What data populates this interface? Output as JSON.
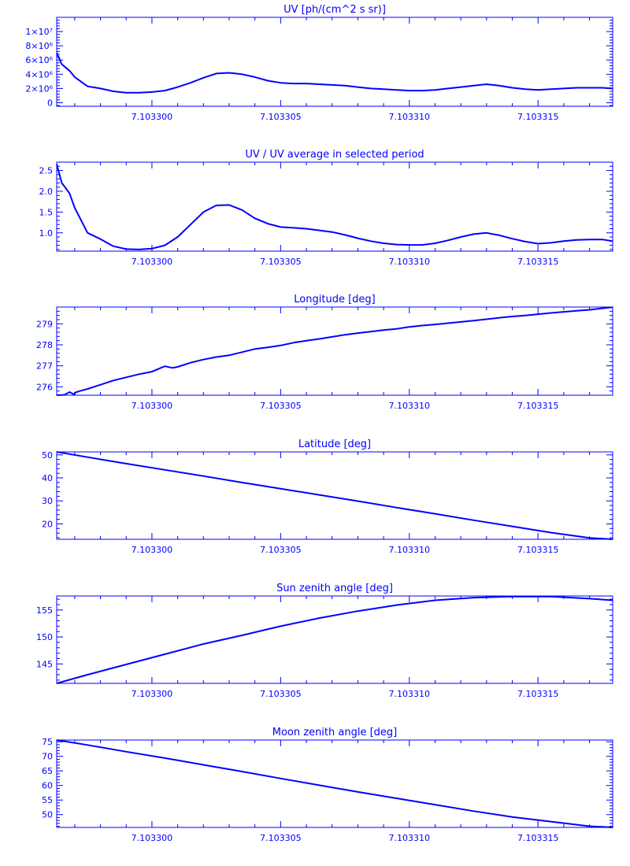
{
  "chart_data": [
    {
      "type": "line",
      "title": "UV [ph/(cm^2 s sr)]",
      "xlabel": "",
      "ylabel": "",
      "xlim": [
        7.1032963,
        7.1033179
      ],
      "ylim": [
        -500000,
        12000000
      ],
      "xticks": [
        7.1033,
        7.103305,
        7.10331,
        7.103315
      ],
      "xtick_labels": [
        "7.103300",
        "7.103305",
        "7.103310",
        "7.103315"
      ],
      "yticks": [
        0,
        2000000,
        4000000,
        6000000,
        8000000,
        10000000
      ],
      "ytick_labels": [
        "0",
        "2×10⁶",
        "4×10⁶",
        "6×10⁶",
        "8×10⁶",
        "1×10⁷"
      ],
      "x": [
        7.1032963,
        7.1032965,
        7.1032968,
        7.103297,
        7.1032975,
        7.103298,
        7.1032985,
        7.103299,
        7.1032995,
        7.1033,
        7.1033005,
        7.103301,
        7.1033015,
        7.103302,
        7.1033025,
        7.103303,
        7.1033035,
        7.103304,
        7.1033045,
        7.103305,
        7.1033055,
        7.103306,
        7.1033065,
        7.103307,
        7.1033075,
        7.103308,
        7.1033085,
        7.103309,
        7.1033095,
        7.10331,
        7.1033105,
        7.103311,
        7.1033115,
        7.103312,
        7.1033125,
        7.103313,
        7.1033135,
        7.103314,
        7.1033145,
        7.103315,
        7.1033155,
        7.103316,
        7.1033165,
        7.103317,
        7.1033175,
        7.1033179
      ],
      "y": [
        7000000,
        5400000,
        4500000,
        3600000,
        2300000,
        2000000,
        1600000,
        1400000,
        1400000,
        1500000,
        1700000,
        2200000,
        2800000,
        3500000,
        4100000,
        4200000,
        4000000,
        3600000,
        3100000,
        2800000,
        2700000,
        2700000,
        2600000,
        2500000,
        2400000,
        2200000,
        2000000,
        1900000,
        1800000,
        1700000,
        1700000,
        1800000,
        2000000,
        2200000,
        2400000,
        2600000,
        2400000,
        2100000,
        1900000,
        1800000,
        1900000,
        2000000,
        2100000,
        2100000,
        2100000,
        2000000
      ],
      "grid": false
    },
    {
      "type": "line",
      "title": "UV / UV average in selected period",
      "xlabel": "",
      "ylabel": "",
      "xlim": [
        7.1032963,
        7.1033179
      ],
      "ylim": [
        0.56,
        2.7
      ],
      "xticks": [
        7.1033,
        7.103305,
        7.10331,
        7.103315
      ],
      "xtick_labels": [
        "7.103300",
        "7.103305",
        "7.103310",
        "7.103315"
      ],
      "yticks": [
        1.0,
        1.5,
        2.0,
        2.5
      ],
      "ytick_labels": [
        "1.0",
        "1.5",
        "2.0",
        "2.5"
      ],
      "x": [
        7.1032963,
        7.1032965,
        7.1032968,
        7.103297,
        7.1032975,
        7.103298,
        7.1032985,
        7.103299,
        7.1032995,
        7.1033,
        7.1033005,
        7.103301,
        7.1033015,
        7.103302,
        7.1033025,
        7.103303,
        7.1033035,
        7.103304,
        7.1033045,
        7.103305,
        7.1033055,
        7.103306,
        7.1033065,
        7.103307,
        7.1033075,
        7.103308,
        7.1033085,
        7.103309,
        7.1033095,
        7.10331,
        7.1033105,
        7.103311,
        7.1033115,
        7.103312,
        7.1033125,
        7.103313,
        7.1033135,
        7.103314,
        7.1033145,
        7.103315,
        7.1033155,
        7.103316,
        7.1033165,
        7.103317,
        7.1033175,
        7.1033179
      ],
      "y": [
        2.65,
        2.2,
        1.95,
        1.6,
        1.0,
        0.85,
        0.68,
        0.61,
        0.6,
        0.62,
        0.7,
        0.9,
        1.2,
        1.5,
        1.66,
        1.67,
        1.55,
        1.35,
        1.22,
        1.14,
        1.12,
        1.1,
        1.06,
        1.02,
        0.95,
        0.87,
        0.8,
        0.75,
        0.72,
        0.71,
        0.71,
        0.75,
        0.82,
        0.9,
        0.97,
        1.0,
        0.94,
        0.86,
        0.79,
        0.74,
        0.76,
        0.8,
        0.83,
        0.84,
        0.84,
        0.8
      ],
      "grid": false
    },
    {
      "type": "line",
      "title": "Longitude [deg]",
      "xlabel": "",
      "ylabel": "",
      "xlim": [
        7.1032963,
        7.1033179
      ],
      "ylim": [
        275.6,
        279.8
      ],
      "xticks": [
        7.1033,
        7.103305,
        7.10331,
        7.103315
      ],
      "xtick_labels": [
        "7.103300",
        "7.103305",
        "7.103310",
        "7.103315"
      ],
      "yticks": [
        276,
        277,
        278,
        279
      ],
      "ytick_labels": [
        "276",
        "277",
        "278",
        "279"
      ],
      "x": [
        7.1032963,
        7.1032966,
        7.1032968,
        7.103297,
        7.103297,
        7.1032972,
        7.1032975,
        7.103298,
        7.1032985,
        7.103299,
        7.1032995,
        7.1033,
        7.1033003,
        7.1033005,
        7.1033008,
        7.103301,
        7.1033015,
        7.103302,
        7.1033025,
        7.103303,
        7.1033035,
        7.103304,
        7.1033045,
        7.103305,
        7.1033055,
        7.103306,
        7.1033065,
        7.103307,
        7.1033075,
        7.103308,
        7.1033085,
        7.103309,
        7.1033095,
        7.10331,
        7.1033105,
        7.103311,
        7.1033115,
        7.103312,
        7.1033125,
        7.103313,
        7.1033135,
        7.103314,
        7.1033145,
        7.103315,
        7.1033155,
        7.103316,
        7.1033165,
        7.103317,
        7.1033175,
        7.1033179
      ],
      "y": [
        275.6,
        275.62,
        275.75,
        275.62,
        275.72,
        275.8,
        275.9,
        276.1,
        276.3,
        276.45,
        276.6,
        276.72,
        276.88,
        276.98,
        276.9,
        276.95,
        277.15,
        277.3,
        277.42,
        277.5,
        277.65,
        277.8,
        277.88,
        277.97,
        278.1,
        278.2,
        278.28,
        278.38,
        278.48,
        278.56,
        278.63,
        278.7,
        278.76,
        278.85,
        278.92,
        278.97,
        279.03,
        279.09,
        279.15,
        279.22,
        279.29,
        279.35,
        279.4,
        279.46,
        279.52,
        279.57,
        279.62,
        279.67,
        279.74,
        279.79
      ],
      "grid": false
    },
    {
      "type": "line",
      "title": "Latitude [deg]",
      "xlabel": "",
      "ylabel": "",
      "xlim": [
        7.1032963,
        7.1033179
      ],
      "ylim": [
        13.3,
        51.3
      ],
      "xticks": [
        7.1033,
        7.103305,
        7.10331,
        7.103315
      ],
      "xtick_labels": [
        "7.103300",
        "7.103305",
        "7.103310",
        "7.103315"
      ],
      "yticks": [
        20,
        30,
        40,
        50
      ],
      "ytick_labels": [
        "20",
        "30",
        "40",
        "50"
      ],
      "x": [
        7.1032963,
        7.1032975,
        7.103299,
        7.1033005,
        7.103302,
        7.1033035,
        7.103305,
        7.1033065,
        7.103308,
        7.1033095,
        7.103311,
        7.1033125,
        7.103314,
        7.1033155,
        7.103317,
        7.1033179
      ],
      "y": [
        51.3,
        49.0,
        46.2,
        43.5,
        40.8,
        38.0,
        35.3,
        32.6,
        29.9,
        27.1,
        24.4,
        21.6,
        18.9,
        16.2,
        13.9,
        13.3
      ],
      "grid": false
    },
    {
      "type": "line",
      "title": "Sun zenith angle [deg]",
      "xlabel": "",
      "ylabel": "",
      "xlim": [
        7.1032963,
        7.1033179
      ],
      "ylim": [
        141.4,
        157.6
      ],
      "xticks": [
        7.1033,
        7.103305,
        7.10331,
        7.103315
      ],
      "xtick_labels": [
        "7.103300",
        "7.103305",
        "7.103310",
        "7.103315"
      ],
      "yticks": [
        145,
        150,
        155
      ],
      "ytick_labels": [
        "145",
        "150",
        "155"
      ],
      "x": [
        7.1032963,
        7.1032975,
        7.103299,
        7.1033005,
        7.103302,
        7.1033035,
        7.103305,
        7.1033065,
        7.103308,
        7.1033095,
        7.103311,
        7.1033125,
        7.103314,
        7.1033155,
        7.103317,
        7.1033179
      ],
      "y": [
        141.4,
        143.0,
        144.9,
        146.8,
        148.7,
        150.3,
        152.0,
        153.5,
        154.8,
        155.9,
        156.8,
        157.3,
        157.5,
        157.5,
        157.1,
        156.8
      ],
      "grid": false
    },
    {
      "type": "line",
      "title": "Moon zenith angle [deg]",
      "xlabel": "",
      "ylabel": "",
      "xlim": [
        7.1032963,
        7.1033179
      ],
      "ylim": [
        45.6,
        75.6
      ],
      "xticks": [
        7.1033,
        7.103305,
        7.10331,
        7.103315
      ],
      "xtick_labels": [
        "7.103300",
        "7.103305",
        "7.103310",
        "7.103315"
      ],
      "yticks": [
        50,
        55,
        60,
        65,
        70,
        75
      ],
      "ytick_labels": [
        "50",
        "55",
        "60",
        "65",
        "70",
        "75"
      ],
      "x": [
        7.1032963,
        7.1032975,
        7.103299,
        7.1033005,
        7.103302,
        7.1033035,
        7.103305,
        7.1033065,
        7.103308,
        7.1033095,
        7.103311,
        7.1033125,
        7.103314,
        7.1033155,
        7.103317,
        7.1033179
      ],
      "y": [
        75.6,
        73.9,
        71.6,
        69.4,
        67.1,
        64.8,
        62.4,
        60.1,
        57.8,
        55.6,
        53.4,
        51.2,
        49.2,
        47.6,
        46.0,
        45.6
      ],
      "grid": false
    }
  ],
  "colors": {
    "axis": "#0000ff",
    "line": "#0000ff",
    "background": "#ffffff"
  }
}
